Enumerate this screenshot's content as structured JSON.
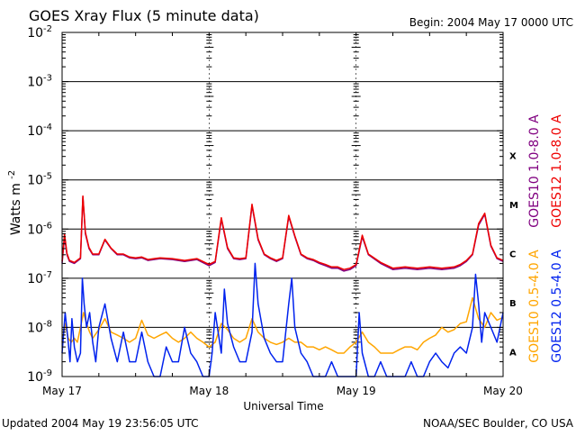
{
  "chart_data": {
    "type": "line",
    "title": "GOES Xray Flux (5 minute data)",
    "begin": "Begin:  2004 May 17 0000 UTC",
    "xlabel": "Universal Time",
    "ylabel": "Watts m",
    "ylabel_sup": "-2",
    "x_ticks": [
      "May 17",
      "May 18",
      "May 19",
      "May 20"
    ],
    "xlim_hours": [
      0,
      72
    ],
    "y_scale": "log",
    "ylim": [
      1e-09,
      0.01
    ],
    "y_tick_mantissa": "10",
    "y_tick_exponents": [
      "-9",
      "-8",
      "-7",
      "-6",
      "-5",
      "-4",
      "-3",
      "-2"
    ],
    "flare_classes": [
      "A",
      "B",
      "C",
      "M",
      "X"
    ],
    "grid": true,
    "legend_placement": "right",
    "series": [
      {
        "name": "GOES10 1.0-8.0 A",
        "color": "#800080",
        "x_hours": [
          0,
          0.4,
          0.8,
          1.2,
          2,
          3,
          3.4,
          3.8,
          4.4,
          5,
          6,
          7,
          8,
          9,
          10,
          11,
          12,
          13,
          14,
          15,
          16,
          18,
          20,
          22,
          24,
          25,
          26,
          27,
          28,
          29,
          30,
          31,
          32,
          33,
          34,
          35,
          36,
          37,
          38,
          39,
          40,
          41,
          42,
          43,
          44,
          45,
          46,
          47,
          48,
          49,
          50,
          52,
          54,
          56,
          58,
          60,
          62,
          64,
          65,
          66,
          67,
          68,
          69,
          70,
          71,
          72
        ],
        "y": [
          2e-07,
          7e-07,
          3e-07,
          2.2e-07,
          2e-07,
          2.5e-07,
          4.5e-06,
          8e-07,
          4e-07,
          3e-07,
          3e-07,
          6e-07,
          4e-07,
          3e-07,
          3e-07,
          2.6e-07,
          2.5e-07,
          2.6e-07,
          2.3e-07,
          2.4e-07,
          2.5e-07,
          2.4e-07,
          2.2e-07,
          2.4e-07,
          1.8e-07,
          2.1e-07,
          1.6e-06,
          4e-07,
          2.5e-07,
          2.4e-07,
          2.5e-07,
          3e-06,
          6e-07,
          3e-07,
          2.5e-07,
          2.2e-07,
          2.5e-07,
          1.8e-06,
          7e-07,
          3e-07,
          2.5e-07,
          2.3e-07,
          2e-07,
          1.8e-07,
          1.6e-07,
          1.6e-07,
          1.4e-07,
          1.5e-07,
          1.8e-07,
          7e-07,
          3e-07,
          2e-07,
          1.5e-07,
          1.6e-07,
          1.5e-07,
          1.6e-07,
          1.5e-07,
          1.6e-07,
          1.8e-07,
          2.2e-07,
          3e-07,
          1.2e-06,
          2e-06,
          4.5e-07,
          2.5e-07,
          2.2e-07
        ]
      },
      {
        "name": "GOES12 1.0-8.0 A",
        "color": "#ee0000",
        "x_hours": [
          0,
          0.4,
          0.8,
          1.2,
          2,
          3,
          3.4,
          3.8,
          4.4,
          5,
          6,
          7,
          8,
          9,
          10,
          11,
          12,
          13,
          14,
          15,
          16,
          18,
          20,
          22,
          24,
          25,
          26,
          27,
          28,
          29,
          30,
          31,
          32,
          33,
          34,
          35,
          36,
          37,
          38,
          39,
          40,
          41,
          42,
          43,
          44,
          45,
          46,
          47,
          48,
          49,
          50,
          52,
          54,
          56,
          58,
          60,
          62,
          64,
          65,
          66,
          67,
          68,
          69,
          70,
          71,
          72
        ],
        "y": [
          2.2e-07,
          8e-07,
          3.2e-07,
          2.3e-07,
          2.1e-07,
          2.6e-07,
          4.7e-06,
          8.5e-07,
          4.2e-07,
          3.1e-07,
          3.1e-07,
          6.2e-07,
          4.1e-07,
          3.1e-07,
          3.1e-07,
          2.7e-07,
          2.6e-07,
          2.7e-07,
          2.4e-07,
          2.5e-07,
          2.6e-07,
          2.5e-07,
          2.3e-07,
          2.5e-07,
          1.9e-07,
          2.2e-07,
          1.7e-06,
          4.2e-07,
          2.6e-07,
          2.5e-07,
          2.6e-07,
          3.2e-06,
          6.3e-07,
          3.1e-07,
          2.6e-07,
          2.3e-07,
          2.6e-07,
          1.9e-06,
          7.3e-07,
          3.1e-07,
          2.6e-07,
          2.4e-07,
          2.1e-07,
          1.9e-07,
          1.7e-07,
          1.7e-07,
          1.5e-07,
          1.6e-07,
          1.9e-07,
          7.5e-07,
          3.1e-07,
          2.1e-07,
          1.6e-07,
          1.7e-07,
          1.6e-07,
          1.7e-07,
          1.6e-07,
          1.7e-07,
          1.9e-07,
          2.3e-07,
          3.1e-07,
          1.3e-06,
          2.1e-06,
          4.7e-07,
          2.6e-07,
          2.3e-07
        ]
      },
      {
        "name": "GOES10 0.5-4.0 A",
        "color": "#ffa500",
        "x_hours": [
          0,
          0.5,
          1,
          1.5,
          2,
          2.5,
          3,
          3.5,
          4,
          4.5,
          5,
          6,
          7,
          8,
          9,
          10,
          11,
          12,
          13,
          14,
          15,
          16,
          17,
          18,
          19,
          20,
          21,
          22,
          23,
          24,
          25,
          26,
          27,
          28,
          29,
          30,
          31,
          32,
          33,
          34,
          35,
          36,
          37,
          38,
          39,
          40,
          41,
          42,
          43,
          44,
          45,
          46,
          47,
          48,
          49,
          50,
          51,
          52,
          53,
          54,
          55,
          56,
          57,
          58,
          59,
          60,
          61,
          62,
          63,
          64,
          65,
          66,
          67,
          68,
          69,
          70,
          71,
          72
        ],
        "y": [
          5e-09,
          1.2e-08,
          6e-09,
          5e-09,
          6e-09,
          5e-09,
          1e-08,
          2e-08,
          1.2e-08,
          8e-09,
          6e-09,
          9e-09,
          1.5e-08,
          8e-09,
          7e-09,
          6e-09,
          5e-09,
          6e-09,
          1.4e-08,
          7e-09,
          6e-09,
          7e-09,
          8e-09,
          6e-09,
          5e-09,
          6e-09,
          8e-09,
          6e-09,
          5e-09,
          4e-09,
          5e-09,
          1.2e-08,
          9e-09,
          6e-09,
          5e-09,
          6e-09,
          1.5e-08,
          8e-09,
          6e-09,
          5e-09,
          4.5e-09,
          5e-09,
          6e-09,
          5e-09,
          5e-09,
          4e-09,
          4e-09,
          3.5e-09,
          4e-09,
          3.5e-09,
          3e-09,
          3e-09,
          4e-09,
          5e-09,
          8e-09,
          5e-09,
          4e-09,
          3e-09,
          3e-09,
          3e-09,
          3.5e-09,
          4e-09,
          4e-09,
          3.5e-09,
          5e-09,
          6e-09,
          7e-09,
          1e-08,
          8e-09,
          9e-09,
          1.2e-08,
          1.3e-08,
          4e-08,
          1.5e-08,
          1e-08,
          2e-08,
          1.4e-08,
          1.6e-08
        ]
      },
      {
        "name": "GOES12 0.5-4.0 A",
        "color": "#0022ee",
        "x_hours": [
          0,
          0.5,
          1,
          1.3,
          1.6,
          2,
          2.5,
          3,
          3.3,
          3.6,
          4,
          4.5,
          5,
          5.5,
          6,
          7,
          8,
          9,
          10,
          11,
          12,
          13,
          14,
          15,
          16,
          17,
          18,
          19,
          20,
          21,
          22,
          23,
          24,
          24.5,
          25,
          26,
          26.5,
          27,
          28,
          29,
          30,
          31,
          31.5,
          32,
          33,
          34,
          35,
          36,
          37,
          37.5,
          38,
          39,
          40,
          41,
          42,
          43,
          44,
          45,
          46,
          47,
          48,
          48.5,
          49,
          50,
          51,
          52,
          53,
          54,
          55,
          56,
          57,
          58,
          59,
          60,
          61,
          62,
          63,
          64,
          65,
          66,
          67,
          67.5,
          68,
          68.5,
          69,
          70,
          71,
          72
        ],
        "y": [
          3e-09,
          2e-08,
          5e-09,
          2e-09,
          1.5e-08,
          4e-09,
          2e-09,
          3e-09,
          1e-07,
          3e-08,
          1e-08,
          2e-08,
          5e-09,
          2e-09,
          1e-08,
          3e-08,
          6e-09,
          2e-09,
          8e-09,
          2e-09,
          2e-09,
          8e-09,
          2e-09,
          1e-09,
          1e-09,
          4e-09,
          2e-09,
          2e-09,
          1e-08,
          3e-09,
          2e-09,
          1e-09,
          1e-09,
          3e-09,
          2e-08,
          3e-09,
          6e-08,
          1.2e-08,
          4e-09,
          2e-09,
          2e-09,
          8e-09,
          2e-07,
          3e-08,
          6e-09,
          3e-09,
          2e-09,
          2e-09,
          3e-08,
          1e-07,
          1e-08,
          3e-09,
          2e-09,
          1e-09,
          1e-09,
          1e-09,
          2e-09,
          1e-09,
          1e-09,
          1e-09,
          1e-09,
          2e-08,
          3e-09,
          1e-09,
          1e-09,
          2e-09,
          1e-09,
          1e-09,
          1e-09,
          1e-09,
          2e-09,
          1e-09,
          1e-09,
          2e-09,
          3e-09,
          2e-09,
          1.5e-09,
          3e-09,
          4e-09,
          3e-09,
          1e-08,
          1.2e-07,
          3e-08,
          5e-09,
          2e-08,
          1e-08,
          5e-09,
          2e-08
        ]
      }
    ]
  },
  "footer": {
    "updated": "Updated 2004 May 19 23:56:05 UTC",
    "credit": "NOAA/SEC Boulder, CO USA"
  }
}
